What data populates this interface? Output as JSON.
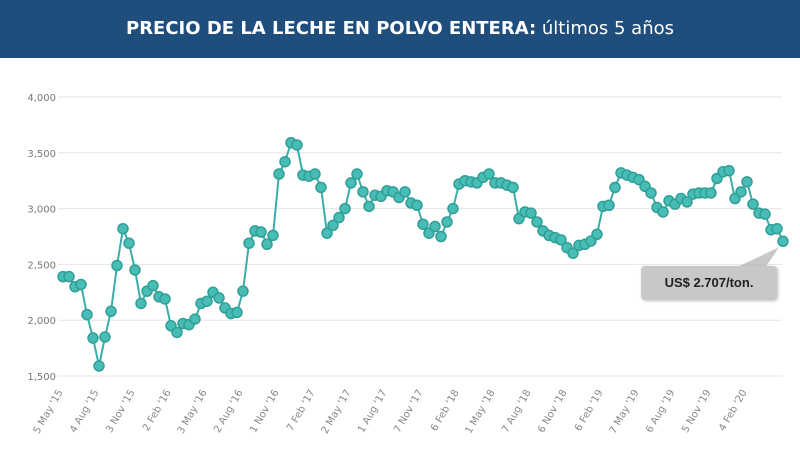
{
  "header": {
    "title_bold": "PRECIO DE LA LECHE EN POLVO ENTERA:",
    "title_rest": " últimos 5 años"
  },
  "tooltip": {
    "text": "US$ 2.707/ton."
  },
  "colors": {
    "header": "#1f4e7d",
    "series": "#3fb8b0",
    "series_stroke": "#2a9d95",
    "tooltip": "#c8c8c8"
  },
  "chart_data": {
    "type": "line",
    "title": "PRECIO DE LA LECHE EN POLVO ENTERA: últimos 5 años",
    "ylim": [
      1500,
      4000
    ],
    "yticks": [
      "1,500",
      "2,000",
      "2,500",
      "3,000",
      "3,500",
      "4,000"
    ],
    "ytick_values": [
      1500,
      2000,
      2500,
      3000,
      3500,
      4000
    ],
    "grid": true,
    "x_tick_every": 6,
    "x_tick_labels": [
      "5 May '15",
      "4 Aug '15",
      "3 Nov '15",
      "2 Feb '16",
      "3 May '16",
      "2 Aug '16",
      "1 Nov '16",
      "7 Feb '17",
      "2 May '17",
      "1 Aug '17",
      "7 Nov '17",
      "6 Feb '18",
      "1 May '18",
      "7 Aug '18",
      "6 Nov '18",
      "6 Feb '19",
      "7 May '19",
      "6 Aug '19",
      "5 Nov '19",
      "4 Feb '20"
    ],
    "values": [
      2390,
      2390,
      2300,
      2320,
      2050,
      1840,
      1590,
      1850,
      2080,
      2490,
      2820,
      2690,
      2450,
      2150,
      2260,
      2310,
      2210,
      2190,
      1950,
      1890,
      1970,
      1960,
      2010,
      2150,
      2170,
      2250,
      2200,
      2110,
      2060,
      2070,
      2260,
      2690,
      2800,
      2790,
      2680,
      2760,
      3310,
      3420,
      3590,
      3570,
      3300,
      3290,
      3310,
      3190,
      2780,
      2850,
      2920,
      3000,
      3230,
      3310,
      3150,
      3020,
      3120,
      3110,
      3160,
      3150,
      3100,
      3150,
      3050,
      3030,
      2860,
      2780,
      2840,
      2750,
      2880,
      3000,
      3220,
      3250,
      3240,
      3230,
      3280,
      3310,
      3230,
      3230,
      3210,
      3190,
      2910,
      2970,
      2960,
      2880,
      2800,
      2760,
      2740,
      2720,
      2650,
      2600,
      2670,
      2680,
      2710,
      2770,
      3020,
      3030,
      3190,
      3320,
      3300,
      3280,
      3260,
      3200,
      3140,
      3010,
      2970,
      3070,
      3040,
      3090,
      3060,
      3130,
      3140,
      3140,
      3140,
      3270,
      3330,
      3340,
      3090,
      3150,
      3240,
      3040,
      2960,
      2950,
      2810,
      2820,
      2707
    ],
    "annotation": "US$ 2.707/ton."
  }
}
